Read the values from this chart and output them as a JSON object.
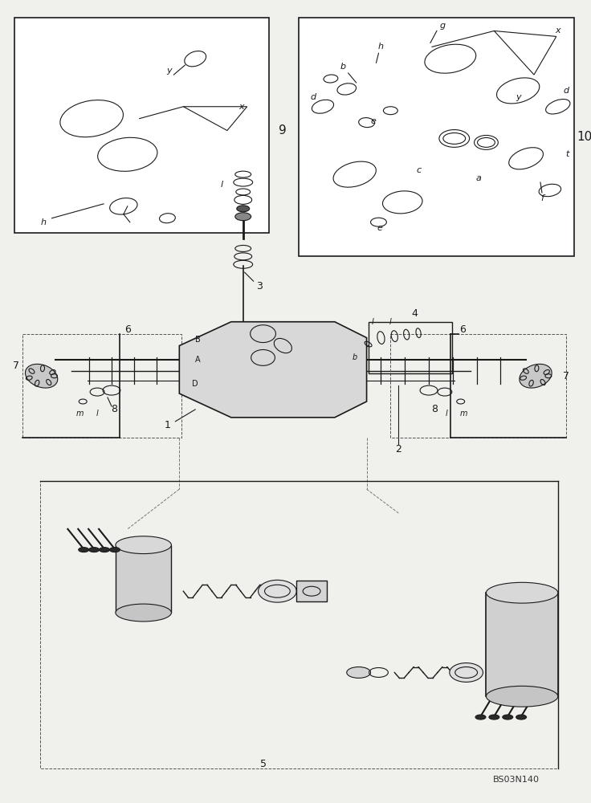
{
  "bg_color": "#f0f0ed",
  "line_color": "#1a1a1a",
  "fig_width": 7.36,
  "fig_height": 10.0,
  "watermark": "BS03N140",
  "label9": "9",
  "label10": "10"
}
